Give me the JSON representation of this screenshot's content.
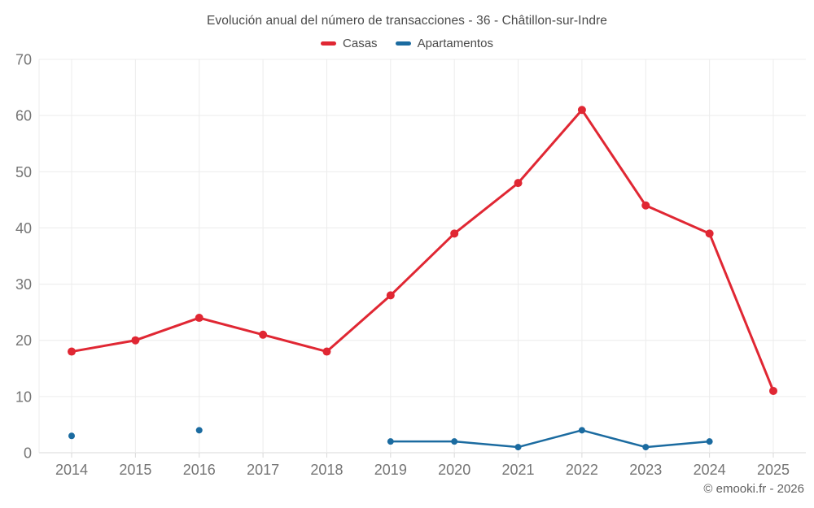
{
  "chart_data": {
    "type": "line",
    "title": "Evolución anual del número de transacciones - 36 - Châtillon-sur-Indre",
    "categories": [
      "2014",
      "2015",
      "2016",
      "2017",
      "2018",
      "2019",
      "2020",
      "2021",
      "2022",
      "2023",
      "2024",
      "2025"
    ],
    "series": [
      {
        "name": "Casas",
        "color": "#e02733",
        "values": [
          18,
          20,
          24,
          21,
          18,
          28,
          39,
          48,
          61,
          44,
          39,
          11
        ]
      },
      {
        "name": "Apartamentos",
        "color": "#1b6ba0",
        "values": [
          3,
          null,
          4,
          null,
          null,
          2,
          2,
          1,
          4,
          1,
          2,
          null
        ]
      }
    ],
    "xlabel": "",
    "ylabel": "",
    "ylim": [
      0,
      70
    ],
    "yticks": [
      0,
      10,
      20,
      30,
      40,
      50,
      60,
      70
    ],
    "grid": true,
    "legend_position": "top"
  },
  "footer": {
    "credit": "© emooki.fr - 2026"
  },
  "colors": {
    "background": "#ffffff",
    "grid": "#ececec",
    "axis": "#d9d9d9",
    "tick_label": "#757575",
    "title_text": "#4a4a4a",
    "footer_text": "#606060"
  }
}
